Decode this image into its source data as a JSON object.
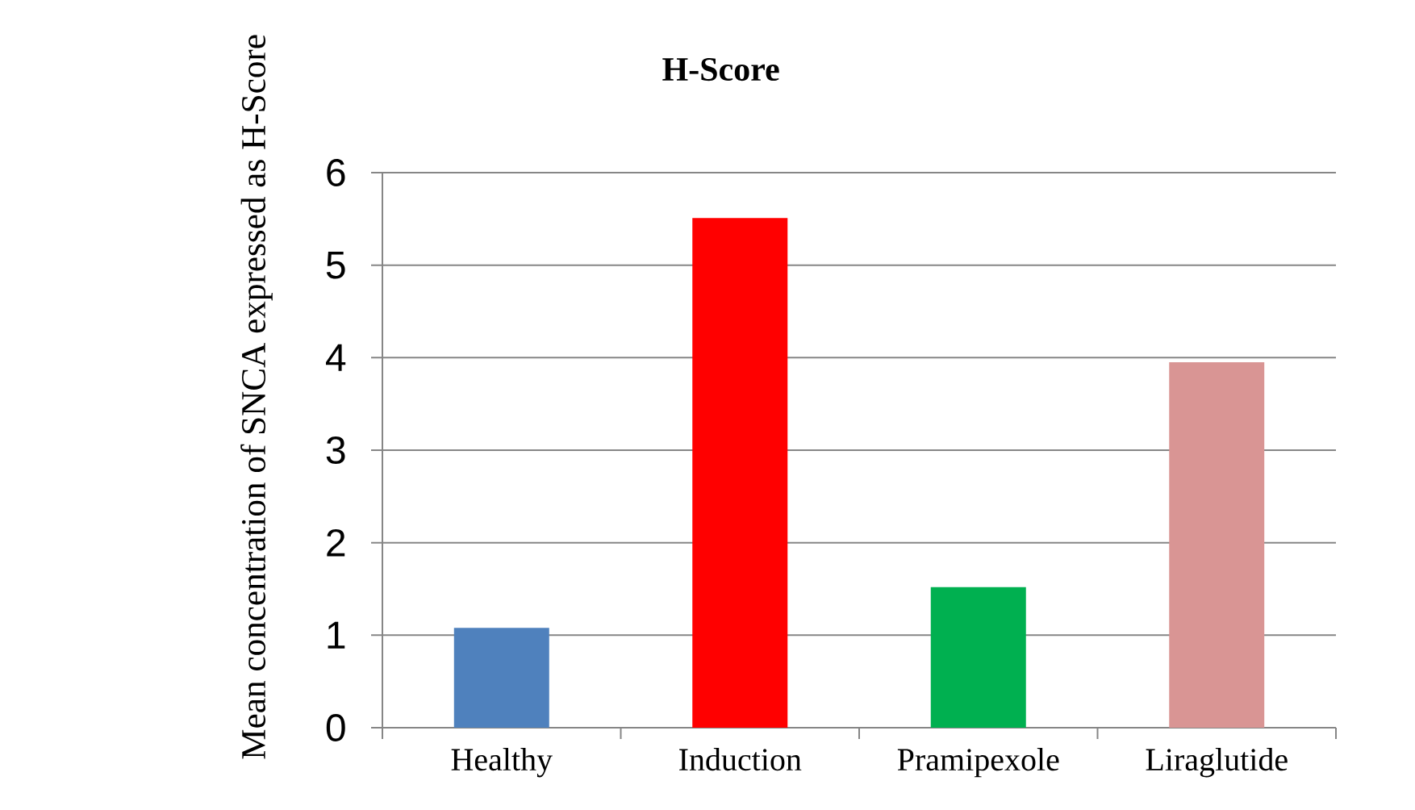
{
  "chart_data": {
    "type": "bar",
    "title": "H-Score",
    "ylabel": "Mean concentration of SNCA expressed as H-Score",
    "categories": [
      "Healthy",
      "Induction",
      "Pramipexole",
      "Liraglutide"
    ],
    "values": [
      1.08,
      5.51,
      1.52,
      3.95
    ],
    "colors": [
      "#4f81bd",
      "#ff0000",
      "#00b050",
      "#d99594"
    ],
    "ylim": [
      0,
      6
    ],
    "yticks": [
      0,
      1,
      2,
      3,
      4,
      5,
      6
    ],
    "grid": "y"
  }
}
